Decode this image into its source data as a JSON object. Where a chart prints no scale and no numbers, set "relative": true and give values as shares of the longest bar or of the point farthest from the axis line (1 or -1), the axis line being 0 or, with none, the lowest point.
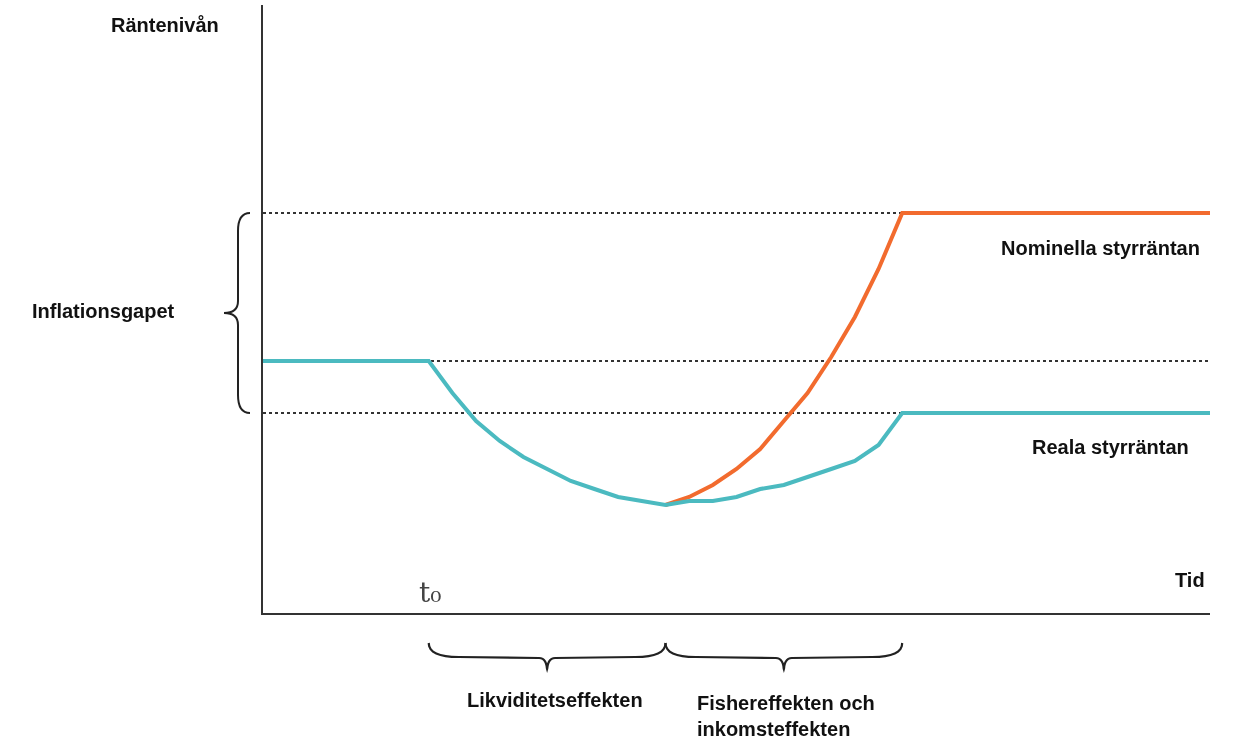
{
  "chart_data": {
    "type": "line",
    "relative": true,
    "xlabel": "Tid",
    "grid": false,
    "legend": false,
    "marker": "none",
    "line_style": "solid",
    "categories": [
      null,
      null,
      null,
      null,
      null,
      null,
      null,
      null,
      null,
      null,
      null,
      null,
      null,
      null,
      null,
      null,
      null,
      null,
      null,
      null,
      null,
      null,
      null,
      null,
      null,
      null,
      null,
      null,
      null,
      null,
      null,
      null,
      null,
      null,
      null,
      null,
      null,
      null,
      null,
      null,
      null
    ],
    "series": [
      {
        "name": "Nominella styrräntan",
        "color": "#f26b2e",
        "values": [
          null,
          null,
          null,
          null,
          null,
          null,
          null,
          null,
          null,
          null,
          null,
          null,
          null,
          null,
          null,
          null,
          null,
          0.27,
          0.29,
          0.32,
          0.36,
          0.41,
          0.48,
          0.55,
          0.64,
          0.74,
          0.86,
          1,
          1,
          1,
          1,
          1,
          1,
          1,
          1,
          1,
          1,
          1,
          1,
          1,
          1
        ]
      },
      {
        "name": "Reala styrräntan",
        "color": "#4bbac0",
        "values": [
          0.63,
          0.63,
          0.63,
          0.63,
          0.63,
          0.63,
          0.63,
          0.63,
          0.55,
          0.48,
          0.43,
          0.39,
          0.36,
          0.33,
          0.31,
          0.29,
          0.28,
          0.27,
          0.28,
          0.28,
          0.29,
          0.31,
          0.32,
          0.34,
          0.36,
          0.38,
          0.42,
          0.5,
          0.5,
          0.5,
          0.5,
          0.5,
          0.5,
          0.5,
          0.5,
          0.5,
          0.5,
          0.5,
          0.5,
          0.5,
          0.5
        ]
      }
    ],
    "ref_lines": [
      {
        "axis": "y",
        "value": 1,
        "color": "#333333",
        "line_style": "dotted"
      },
      {
        "axis": "y",
        "value": 0.63,
        "color": "#333333",
        "line_style": "dotted"
      },
      {
        "axis": "y",
        "value": 0.5,
        "color": "#333333",
        "line_style": "dotted"
      }
    ],
    "annotations": [
      "Inflationsgapet",
      "t₀",
      "Likviditetseffekten",
      "Fishereffekten och\ninkomsteffekten",
      "Räntenivån"
    ]
  }
}
